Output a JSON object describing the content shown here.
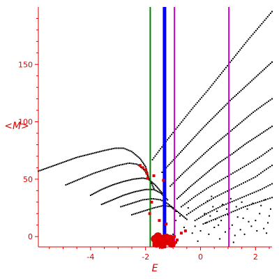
{
  "chart_data": {
    "type": "scatter",
    "xlabel": "E",
    "ylabel": "<M>",
    "xlim": [
      -5.9,
      2.6
    ],
    "ylim": [
      -9,
      200
    ],
    "x_ticks": [
      "-4",
      "-2",
      "0",
      "2"
    ],
    "x_tick_values": [
      -4,
      -2,
      0,
      2
    ],
    "y_ticks": [
      "0",
      "50",
      "100",
      "150"
    ],
    "y_tick_values": [
      0,
      50,
      100,
      150
    ],
    "point_color": "#000000",
    "highlight_color": "#e00000",
    "axis_color": "#e00000",
    "vertical_lines": [
      {
        "x": -1.83,
        "color": "#008000",
        "width": 2
      },
      {
        "x": -1.31,
        "color": "#0000ff",
        "width": 5
      },
      {
        "x": -0.95,
        "color": "#d000d0",
        "width": 2
      },
      {
        "x": 1.03,
        "color": "#d000d0",
        "width": 2
      }
    ],
    "curves": [
      {
        "points": [
          [
            -5.9,
            57
          ],
          [
            -5.2,
            63
          ],
          [
            -4.5,
            69
          ],
          [
            -4.0,
            72
          ],
          [
            -3.5,
            75
          ],
          [
            -3.1,
            77
          ],
          [
            -2.8,
            77
          ],
          [
            -2.5,
            74
          ],
          [
            -2.2,
            68
          ],
          [
            -2.0,
            61
          ],
          [
            -1.9,
            52
          ]
        ],
        "n": 75
      },
      {
        "points": [
          [
            -4.9,
            45
          ],
          [
            -4.4,
            50
          ],
          [
            -3.9,
            55
          ],
          [
            -3.4,
            59
          ],
          [
            -3.0,
            62
          ],
          [
            -2.6,
            64
          ],
          [
            -2.3,
            63
          ],
          [
            -2.05,
            58
          ],
          [
            -1.85,
            50
          ],
          [
            -1.7,
            42
          ]
        ],
        "n": 60
      },
      {
        "points": [
          [
            -4.0,
            36
          ],
          [
            -3.6,
            41
          ],
          [
            -3.2,
            45
          ],
          [
            -2.8,
            48
          ],
          [
            -2.45,
            50
          ],
          [
            -2.1,
            51
          ],
          [
            -1.9,
            50
          ],
          [
            -1.65,
            45
          ],
          [
            -1.4,
            38
          ]
        ],
        "n": 50
      },
      {
        "points": [
          [
            -3.6,
            28
          ],
          [
            -3.2,
            32
          ],
          [
            -2.8,
            36
          ],
          [
            -2.4,
            39
          ],
          [
            -2.0,
            41
          ],
          [
            -1.7,
            41
          ],
          [
            -1.45,
            38
          ],
          [
            -1.2,
            32
          ]
        ],
        "n": 45
      },
      {
        "points": [
          [
            -2.9,
            26
          ],
          [
            -2.5,
            29
          ],
          [
            -2.1,
            32
          ],
          [
            -1.75,
            33
          ],
          [
            -1.45,
            32
          ],
          [
            -1.15,
            28
          ],
          [
            -0.9,
            22
          ]
        ],
        "n": 35
      },
      {
        "points": [
          [
            -2.5,
            19
          ],
          [
            -2.1,
            22
          ],
          [
            -1.7,
            25
          ],
          [
            -1.35,
            27
          ],
          [
            -1.05,
            26
          ],
          [
            -0.8,
            21
          ],
          [
            -0.5,
            15
          ]
        ],
        "n": 35
      },
      {
        "points": [
          [
            -1.75,
            67
          ],
          [
            -1.25,
            83
          ],
          [
            -0.75,
            98
          ],
          [
            -0.25,
            113
          ],
          [
            0.25,
            127
          ],
          [
            0.75,
            142
          ],
          [
            1.25,
            157
          ],
          [
            1.75,
            172
          ],
          [
            2.25,
            186
          ],
          [
            2.6,
            196
          ]
        ],
        "n": 85
      },
      {
        "points": [
          [
            -1.4,
            56
          ],
          [
            -0.9,
            69
          ],
          [
            -0.4,
            82
          ],
          [
            0.1,
            95
          ],
          [
            0.6,
            107
          ],
          [
            1.1,
            119
          ],
          [
            1.6,
            130
          ],
          [
            2.1,
            141
          ],
          [
            2.6,
            152
          ]
        ],
        "n": 75
      },
      {
        "points": [
          [
            -1.1,
            44
          ],
          [
            -0.6,
            56
          ],
          [
            -0.1,
            67
          ],
          [
            0.4,
            78
          ],
          [
            0.9,
            88
          ],
          [
            1.4,
            98
          ],
          [
            1.9,
            108
          ],
          [
            2.3,
            115
          ],
          [
            2.6,
            120
          ]
        ],
        "n": 65
      },
      {
        "points": [
          [
            -0.85,
            33
          ],
          [
            -0.35,
            44
          ],
          [
            0.15,
            54
          ],
          [
            0.65,
            64
          ],
          [
            1.15,
            72
          ],
          [
            1.65,
            81
          ],
          [
            2.1,
            88
          ],
          [
            2.6,
            96
          ]
        ],
        "n": 60
      },
      {
        "points": [
          [
            -0.7,
            26
          ],
          [
            -0.2,
            35
          ],
          [
            0.3,
            43
          ],
          [
            0.8,
            50
          ],
          [
            1.3,
            57
          ],
          [
            1.8,
            64
          ],
          [
            2.2,
            70
          ],
          [
            2.6,
            77
          ]
        ],
        "n": 50
      },
      {
        "points": [
          [
            -0.5,
            19
          ],
          [
            0.0,
            27
          ],
          [
            0.5,
            34
          ],
          [
            1.0,
            40
          ],
          [
            1.5,
            46
          ],
          [
            2.0,
            52
          ],
          [
            2.35,
            58
          ],
          [
            2.6,
            62
          ]
        ],
        "n": 45
      },
      {
        "points": [
          [
            -0.2,
            14
          ],
          [
            0.3,
            21
          ],
          [
            0.8,
            27
          ],
          [
            1.3,
            32
          ],
          [
            1.8,
            37
          ],
          [
            2.2,
            41
          ],
          [
            2.6,
            46
          ]
        ],
        "n": 40
      },
      {
        "points": [
          [
            0.1,
            11
          ],
          [
            0.6,
            16
          ],
          [
            1.1,
            21
          ],
          [
            1.6,
            26
          ],
          [
            2.1,
            30
          ],
          [
            2.6,
            34
          ]
        ],
        "n": 35
      }
    ],
    "cluster_points": [
      [
        0.0,
        5
      ],
      [
        0.2,
        12
      ],
      [
        0.35,
        18
      ],
      [
        0.5,
        8
      ],
      [
        0.6,
        22
      ],
      [
        0.75,
        14
      ],
      [
        0.9,
        4
      ],
      [
        1.0,
        19
      ],
      [
        1.15,
        10
      ],
      [
        1.3,
        26
      ],
      [
        1.45,
        6
      ],
      [
        1.55,
        16
      ],
      [
        1.7,
        24
      ],
      [
        1.85,
        9
      ],
      [
        2.0,
        14
      ],
      [
        2.15,
        20
      ],
      [
        2.3,
        7
      ],
      [
        2.45,
        12
      ],
      [
        2.55,
        24
      ],
      [
        0.3,
        2
      ],
      [
        0.8,
        28
      ],
      [
        1.25,
        1
      ],
      [
        1.9,
        29
      ],
      [
        2.4,
        3
      ],
      [
        0.45,
        26
      ],
      [
        1.05,
        7
      ],
      [
        1.6,
        2
      ],
      [
        2.2,
        27
      ],
      [
        0.15,
        20
      ],
      [
        0.65,
        10
      ],
      [
        1.35,
        17
      ],
      [
        2.05,
        5
      ],
      [
        -0.6,
        8
      ],
      [
        -0.3,
        3
      ],
      [
        -0.9,
        14
      ],
      [
        -1.0,
        2
      ],
      [
        -0.45,
        25
      ],
      [
        -0.75,
        18
      ],
      [
        0.55,
        15
      ],
      [
        1.75,
        13
      ],
      [
        2.5,
        18
      ],
      [
        0.95,
        24
      ],
      [
        1.5,
        30
      ],
      [
        0.25,
        31
      ],
      [
        -0.1,
        -4
      ],
      [
        0.7,
        -2
      ],
      [
        1.2,
        -5
      ],
      [
        -0.2,
        9
      ],
      [
        2.35,
        32
      ],
      [
        1.1,
        33
      ],
      [
        0.4,
        35
      ]
    ],
    "red_points": [
      [
        -2.2,
        62
      ],
      [
        -2.1,
        60
      ],
      [
        -2.0,
        58
      ],
      [
        -1.95,
        55
      ],
      [
        -1.92,
        51
      ],
      [
        -1.7,
        53
      ],
      [
        -1.35,
        49
      ],
      [
        -1.78,
        30
      ],
      [
        -1.85,
        20
      ],
      [
        -1.5,
        14
      ],
      [
        -1.25,
        11
      ],
      [
        -1.5,
        2
      ],
      [
        -0.95,
        0
      ],
      [
        -0.55,
        5
      ],
      [
        -0.7,
        3
      ],
      [
        -0.85,
        -3
      ],
      [
        -0.9,
        -5
      ],
      [
        -1.1,
        -6
      ],
      [
        -1.7,
        -8
      ],
      [
        -1.6,
        -6
      ],
      [
        -1.4,
        -8
      ],
      [
        -1.3,
        -9
      ],
      [
        -1.2,
        -5
      ],
      [
        -1.05,
        -3
      ]
    ],
    "red_blob": [
      [
        -1.65,
        -2
      ],
      [
        -1.5,
        -5
      ],
      [
        -1.35,
        -2
      ],
      [
        -1.2,
        -4
      ],
      [
        -1.05,
        -6
      ],
      [
        -1.55,
        0
      ],
      [
        -1.4,
        -7
      ],
      [
        -1.25,
        -1
      ],
      [
        -1.1,
        -2
      ],
      [
        -1.6,
        -6
      ]
    ]
  }
}
